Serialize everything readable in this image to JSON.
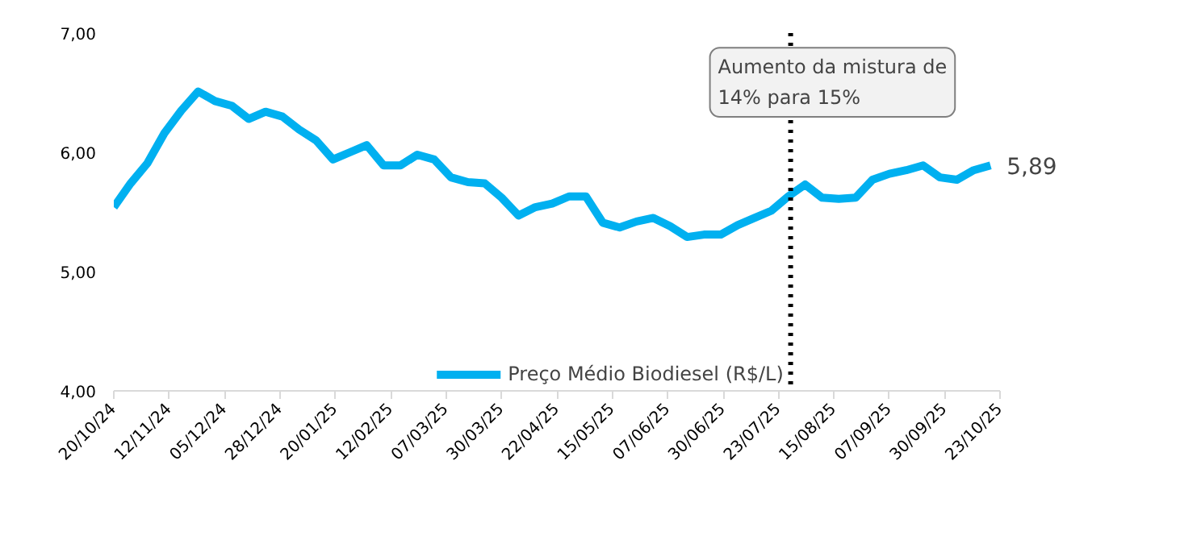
{
  "chart_data": {
    "type": "line",
    "x": [
      "2024-10-20",
      "2024-10-27",
      "2024-11-03",
      "2024-11-10",
      "2024-11-17",
      "2024-11-24",
      "2024-12-01",
      "2024-12-08",
      "2024-12-15",
      "2024-12-22",
      "2024-12-29",
      "2025-01-05",
      "2025-01-12",
      "2025-01-19",
      "2025-01-26",
      "2025-02-02",
      "2025-02-09",
      "2025-02-16",
      "2025-02-23",
      "2025-03-02",
      "2025-03-09",
      "2025-03-16",
      "2025-03-23",
      "2025-03-30",
      "2025-04-06",
      "2025-04-13",
      "2025-04-20",
      "2025-04-27",
      "2025-05-04",
      "2025-05-11",
      "2025-05-18",
      "2025-05-25",
      "2025-06-01",
      "2025-06-08",
      "2025-06-15",
      "2025-06-22",
      "2025-06-29",
      "2025-07-06",
      "2025-07-13",
      "2025-07-20",
      "2025-07-27",
      "2025-08-03",
      "2025-08-10",
      "2025-08-17",
      "2025-08-24",
      "2025-08-31",
      "2025-09-07",
      "2025-09-14",
      "2025-09-21",
      "2025-09-28",
      "2025-10-05",
      "2025-10-12",
      "2025-10-19"
    ],
    "series": [
      {
        "name": "Preço Médio Biodiesel (R$/L)",
        "color": "#00b0f0",
        "values": [
          5.54,
          5.74,
          5.91,
          6.16,
          6.35,
          6.51,
          6.43,
          6.39,
          6.28,
          6.34,
          6.3,
          6.19,
          6.1,
          5.94,
          6.0,
          6.06,
          5.89,
          5.89,
          5.98,
          5.94,
          5.79,
          5.75,
          5.74,
          5.62,
          5.47,
          5.54,
          5.57,
          5.63,
          5.63,
          5.41,
          5.37,
          5.42,
          5.45,
          5.38,
          5.29,
          5.31,
          5.31,
          5.39,
          5.45,
          5.51,
          5.63,
          5.73,
          5.62,
          5.61,
          5.62,
          5.77,
          5.82,
          5.85,
          5.89,
          5.79,
          5.77,
          5.85,
          5.89
        ]
      }
    ],
    "xlim": [
      "2024-10-20",
      "2025-10-23"
    ],
    "xticks": [
      {
        "value": "2024-10-20",
        "label": "20/10/24"
      },
      {
        "value": "2024-11-12",
        "label": "12/11/24"
      },
      {
        "value": "2024-12-05",
        "label": "05/12/24"
      },
      {
        "value": "2024-12-28",
        "label": "28/12/24"
      },
      {
        "value": "2025-01-20",
        "label": "20/01/25"
      },
      {
        "value": "2025-02-12",
        "label": "12/02/25"
      },
      {
        "value": "2025-03-07",
        "label": "07/03/25"
      },
      {
        "value": "2025-03-30",
        "label": "30/03/25"
      },
      {
        "value": "2025-04-22",
        "label": "22/04/25"
      },
      {
        "value": "2025-05-15",
        "label": "15/05/25"
      },
      {
        "value": "2025-06-07",
        "label": "07/06/25"
      },
      {
        "value": "2025-06-30",
        "label": "30/06/25"
      },
      {
        "value": "2025-07-23",
        "label": "23/07/25"
      },
      {
        "value": "2025-08-15",
        "label": "15/08/25"
      },
      {
        "value": "2025-09-07",
        "label": "07/09/25"
      },
      {
        "value": "2025-09-30",
        "label": "30/09/25"
      },
      {
        "value": "2025-10-23",
        "label": "23/10/25"
      }
    ],
    "ylim": [
      4,
      7
    ],
    "yticks": [
      {
        "value": 4,
        "label": "4,00"
      },
      {
        "value": 5,
        "label": "5,00"
      },
      {
        "value": 6,
        "label": "6,00"
      },
      {
        "value": 7,
        "label": "7,00"
      }
    ],
    "ref_lines": [
      {
        "axis": "x",
        "value": "2025-07-28",
        "label": "Aumento da mistura de 14% para 15%",
        "color": "#000000",
        "line_style": "dotted"
      }
    ],
    "annotations": [
      {
        "text": "5,89",
        "x": "2025-10-19",
        "y": 5.89
      }
    ],
    "grid": false,
    "legend": "bottom",
    "marker": "none",
    "line_style": "solid"
  }
}
